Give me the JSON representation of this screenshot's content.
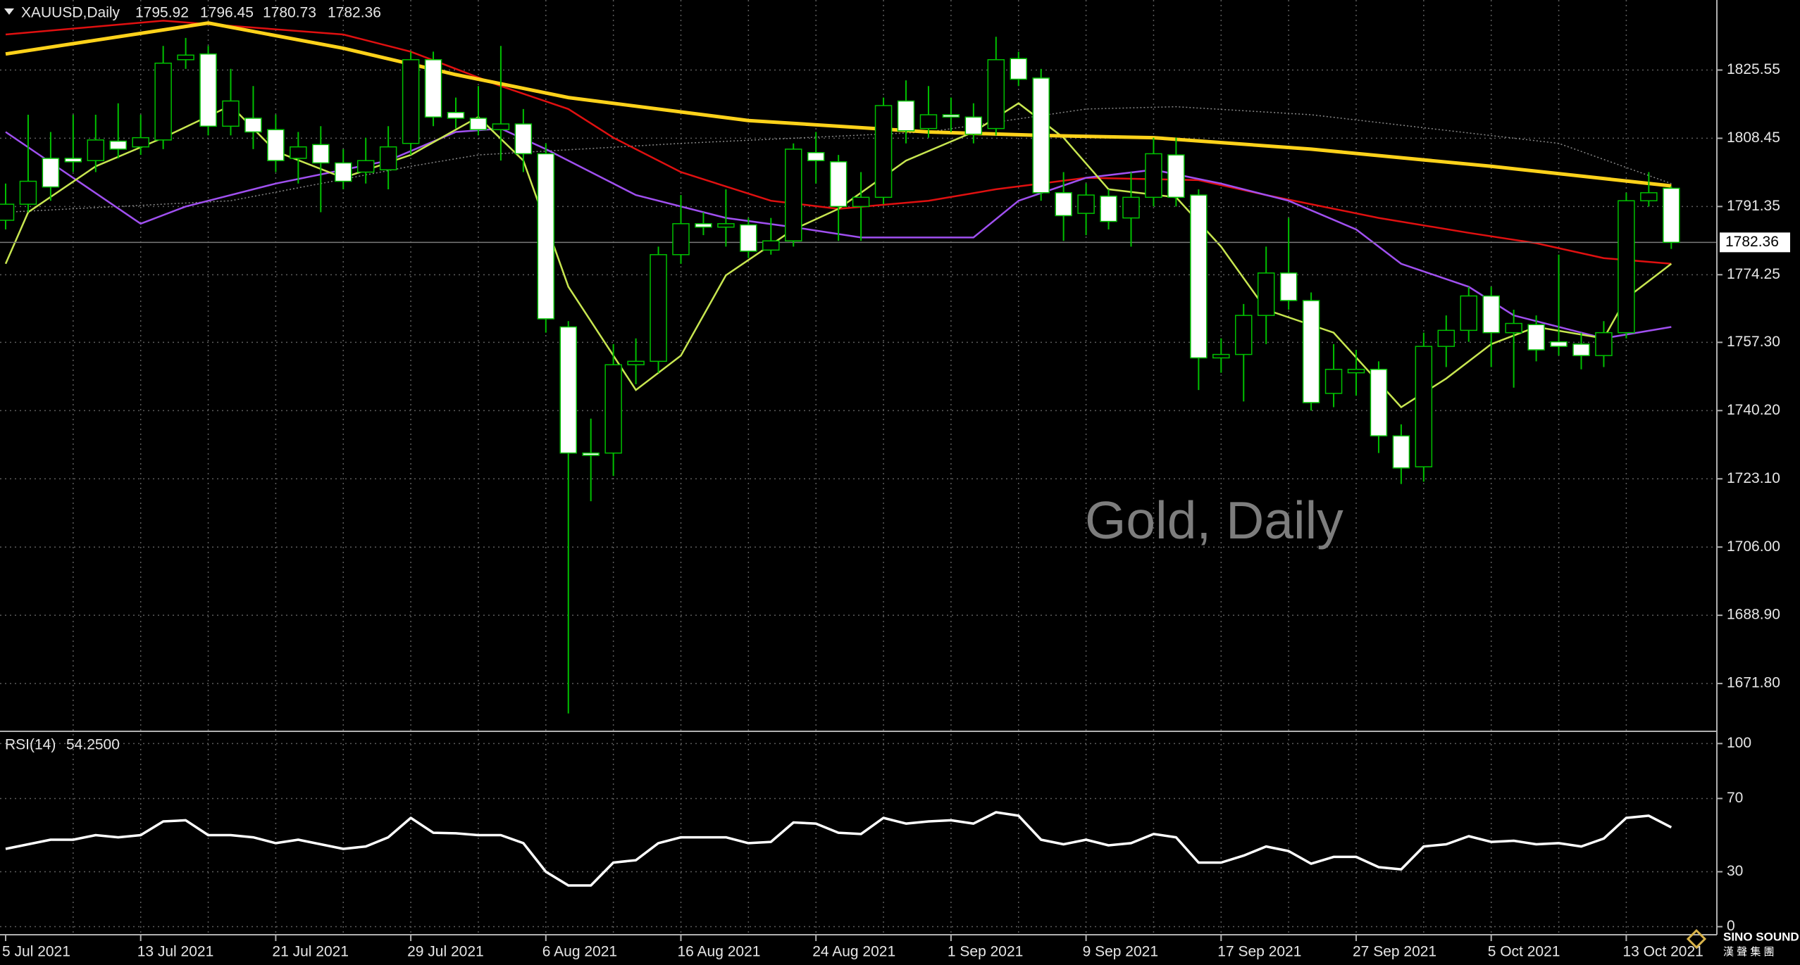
{
  "chart_data": [
    {
      "type": "candlestick",
      "title": "XAUUSD,Daily",
      "watermark": "Gold, Daily",
      "categories": [
        "5 Jul 2021",
        null,
        null,
        null,
        null,
        null,
        "13 Jul 2021",
        null,
        null,
        null,
        null,
        null,
        "21 Jul 2021",
        null,
        null,
        null,
        null,
        null,
        "29 Jul 2021",
        null,
        null,
        null,
        null,
        null,
        "6 Aug 2021",
        null,
        null,
        null,
        null,
        null,
        "16 Aug 2021",
        null,
        null,
        null,
        null,
        null,
        "24 Aug 2021",
        null,
        null,
        null,
        null,
        null,
        "1 Sep 2021",
        null,
        null,
        null,
        null,
        null,
        "9 Sep 2021",
        null,
        null,
        null,
        null,
        null,
        "17 Sep 2021",
        null,
        null,
        null,
        null,
        null,
        "27 Sep 2021",
        null,
        null,
        null,
        null,
        null,
        "5 Oct 2021",
        null,
        null,
        null,
        null,
        null,
        "13 Oct 2021",
        null,
        null
      ],
      "open": [
        1787.9,
        1791.92,
        1803.42,
        1803.42,
        1802.85,
        1807.73,
        1806.29,
        1808.02,
        1828.14,
        1829.57,
        1811.47,
        1813.48,
        1810.61,
        1803.42,
        1806.87,
        1802.27,
        1799.97,
        1800.55,
        1807.16,
        1828.14,
        1814.92,
        1813.48,
        1810.61,
        1812.04,
        1804.57,
        1761.17,
        1729.56,
        1729.56,
        1751.69,
        1752.55,
        1779.28,
        1787.04,
        1786.18,
        1786.75,
        1780.43,
        1782.73,
        1804.86,
        1802.56,
        1791.35,
        1793.65,
        1817.79,
        1810.89,
        1814.34,
        1813.77,
        1810.89,
        1828.42,
        1823.54,
        1794.8,
        1789.63,
        1793.94,
        1788.48,
        1793.65,
        1804.28,
        1794.22,
        1753.41,
        1754.27,
        1764.05,
        1774.68,
        1767.78,
        1744.51,
        1749.68,
        1750.54,
        1733.87,
        1726.11,
        1756.29,
        1760.31,
        1768.93,
        1759.73,
        1761.75,
        1757.44,
        1756.86,
        1753.99,
        1759.73,
        1792.79,
        1795.92
      ],
      "high": [
        1797.1,
        1814.34,
        1810.03,
        1814.34,
        1814.34,
        1817.22,
        1814.34,
        1831.59,
        1833.6,
        1831.59,
        1825.84,
        1821.53,
        1814.34,
        1810.03,
        1811.47,
        1805.72,
        1808.59,
        1811.47,
        1830.15,
        1830.15,
        1818.65,
        1821.53,
        1831.59,
        1815.78,
        1807.16,
        1762.61,
        1738.18,
        1756.86,
        1758.3,
        1781.29,
        1794.22,
        1789.91,
        1795.66,
        1788.48,
        1788.48,
        1807.16,
        1810.03,
        1804.28,
        1799.97,
        1818.65,
        1822.96,
        1821.53,
        1818.65,
        1817.22,
        1833.88,
        1830.15,
        1825.84,
        1799.97,
        1797.1,
        1795.66,
        1799.97,
        1808.59,
        1808.59,
        1795.66,
        1758.3,
        1766.92,
        1781.29,
        1788.48,
        1769.8,
        1756.86,
        1755.42,
        1752.55,
        1736.75,
        1759.73,
        1764.05,
        1771.23,
        1771.23,
        1765.48,
        1764.05,
        1779.28,
        1759.73,
        1762.61,
        1794.8,
        1799.97,
        1796.45
      ],
      "low": [
        1785.6,
        1789.91,
        1792.79,
        1799.97,
        1799.97,
        1803.42,
        1804.28,
        1805.72,
        1825.84,
        1809.17,
        1809.17,
        1805.72,
        1799.97,
        1797.1,
        1789.91,
        1795.66,
        1797.1,
        1795.66,
        1804.28,
        1811.47,
        1810.89,
        1809.17,
        1802.85,
        1799.97,
        1759.73,
        1664.31,
        1717.49,
        1723.81,
        1746.8,
        1749.68,
        1776.98,
        1784.17,
        1781.29,
        1778.42,
        1779.28,
        1781.29,
        1797.1,
        1782.73,
        1782.73,
        1791.92,
        1807.16,
        1808.59,
        1810.03,
        1807.16,
        1809.17,
        1821.53,
        1792.79,
        1782.73,
        1784.17,
        1785.6,
        1781.29,
        1791.35,
        1791.35,
        1745.36,
        1749.68,
        1742.49,
        1756.86,
        1765.48,
        1740.19,
        1741.06,
        1743.93,
        1729.56,
        1721.8,
        1722.37,
        1751.12,
        1757.44,
        1751.12,
        1745.94,
        1752.55,
        1753.99,
        1750.54,
        1751.12,
        1758.3,
        1791.35,
        1780.73
      ],
      "close": [
        1791.92,
        1797.67,
        1796.24,
        1802.56,
        1808.02,
        1805.72,
        1808.59,
        1827.27,
        1829.29,
        1811.47,
        1817.79,
        1810.03,
        1802.85,
        1806.29,
        1802.27,
        1797.67,
        1802.85,
        1806.29,
        1828.14,
        1813.77,
        1813.48,
        1810.61,
        1812.04,
        1804.57,
        1763.19,
        1729.56,
        1728.98,
        1751.69,
        1752.55,
        1779.28,
        1787.04,
        1786.18,
        1787.04,
        1780.14,
        1782.73,
        1805.72,
        1802.85,
        1791.35,
        1793.65,
        1816.64,
        1810.32,
        1814.34,
        1813.77,
        1809.46,
        1828.14,
        1823.25,
        1794.8,
        1789.05,
        1794.22,
        1787.61,
        1793.65,
        1804.57,
        1793.65,
        1753.41,
        1754.27,
        1764.05,
        1774.68,
        1767.78,
        1742.2,
        1750.54,
        1750.54,
        1733.87,
        1725.82,
        1756.29,
        1760.31,
        1768.93,
        1759.73,
        1762.04,
        1755.42,
        1756.29,
        1753.99,
        1759.73,
        1792.79,
        1794.8,
        1782.36
      ],
      "ylim": [
        1660.0,
        1843.1
      ],
      "yticks": [
        1825.55,
        1808.45,
        1791.35,
        1774.25,
        {
          "value": 1757.3,
          "label": "1757.30"
        },
        {
          "value": 1740.2,
          "label": "1740.20"
        },
        {
          "value": 1723.1,
          "label": "1723.10"
        },
        {
          "value": 1706,
          "label": "1706.00"
        },
        {
          "value": 1688.9,
          "label": "1688.90"
        },
        {
          "value": 1671.8,
          "label": "1671.80"
        }
      ],
      "grid": true,
      "colors": {
        "wick": "#00c000",
        "bull_fill": "#000000",
        "bear_fill": "#ffffff",
        "last_price_line": "#7a7a7a"
      },
      "lines": [
        {
          "color": "#888888",
          "style": "dotted",
          "x": [
            0,
            10,
            18,
            21,
            30,
            41,
            48,
            52,
            58,
            69,
            74
          ],
          "values": [
            1789.91,
            1792.79,
            1801.41,
            1804.28,
            1807.16,
            1810.03,
            1815.78,
            1816.35,
            1814.34,
            1807.16,
            1797.1
          ]
        },
        {
          "color": "#e01010",
          "style": "solid",
          "x": [
            0,
            7,
            15,
            18,
            22,
            25,
            27,
            30,
            34,
            37,
            41,
            44,
            48,
            53,
            56,
            61,
            65,
            68,
            71,
            74
          ],
          "values": [
            1834.46,
            1837.91,
            1834.46,
            1830.15,
            1821.53,
            1815.78,
            1808.59,
            1799.97,
            1792.79,
            1790.77,
            1792.79,
            1795.66,
            1798.54,
            1797.96,
            1794.22,
            1788.48,
            1784.74,
            1782.16,
            1778.42,
            1776.99
          ]
        },
        {
          "color": "#a050f0",
          "style": "solid",
          "x": [
            0,
            3,
            6,
            8,
            12,
            17,
            20,
            22,
            24,
            28,
            32,
            35,
            38,
            43,
            45,
            48,
            51,
            54,
            57,
            60,
            62,
            65,
            67,
            71,
            74
          ],
          "values": [
            1810.03,
            1798.54,
            1787.04,
            1791.35,
            1797.1,
            1802.85,
            1810.03,
            1810.89,
            1805.72,
            1794.22,
            1788.48,
            1786.18,
            1783.59,
            1783.59,
            1792.79,
            1798.54,
            1800.55,
            1797.1,
            1792.79,
            1785.6,
            1776.98,
            1771.23,
            1764.05,
            1758.3,
            1761.17
          ]
        },
        {
          "color": "#c8e650",
          "style": "solid",
          "x": [
            0,
            1,
            4,
            7,
            10,
            12,
            15,
            18,
            21,
            23,
            25,
            28,
            30,
            32,
            35,
            37,
            40,
            43,
            45,
            47,
            49,
            52,
            54,
            56,
            59,
            62,
            64,
            66,
            68,
            71,
            72,
            74
          ],
          "values": [
            1776.98,
            1789.91,
            1801.41,
            1808.59,
            1816.64,
            1805.15,
            1798.54,
            1804.28,
            1813.77,
            1802.85,
            1771.23,
            1745.36,
            1753.99,
            1774.11,
            1785.6,
            1790.77,
            1802.85,
            1810.03,
            1817.22,
            1808.59,
            1795.66,
            1793.65,
            1781.29,
            1765.48,
            1759.73,
            1741.06,
            1748.24,
            1756.86,
            1761.17,
            1758.3,
            1768.36,
            1776.98
          ]
        },
        {
          "color": "#ffd21a",
          "style": "thick",
          "x": [
            0,
            9,
            15,
            20,
            25,
            33,
            41,
            46,
            51,
            58,
            66,
            74
          ],
          "values": [
            1829.57,
            1837.33,
            1831.0,
            1824.4,
            1818.65,
            1812.9,
            1810.03,
            1809.17,
            1808.59,
            1805.72,
            1801.41,
            1796.52
          ]
        }
      ],
      "logo": {
        "name": "SINO SOUND",
        "subtitle": "漢 聲 集 團"
      }
    },
    {
      "type": "line",
      "title": "RSI(14)",
      "color": "#ffffff",
      "values": [
        42.5,
        45,
        47.5,
        47.5,
        50,
        48.8,
        50,
        57.5,
        58.1,
        50,
        50,
        48.8,
        45.6,
        47.5,
        45,
        42.5,
        43.8,
        48.8,
        59.4,
        51.3,
        51,
        50,
        50,
        45.6,
        30,
        22.5,
        22.5,
        35,
        36.3,
        45.6,
        48.8,
        48.8,
        48.8,
        45.6,
        46.3,
        56.9,
        56.3,
        51.3,
        50.6,
        59.4,
        56.3,
        57.5,
        58.1,
        56.3,
        62.5,
        60.6,
        47.5,
        45,
        47.5,
        44.4,
        45.6,
        50.6,
        48.8,
        35,
        35,
        38.8,
        43.8,
        41.3,
        34.4,
        38.1,
        38.1,
        32.5,
        31.3,
        43.8,
        45,
        49.4,
        46.3,
        46.9,
        45,
        45.6,
        43.8,
        48.1,
        59.4,
        60.6,
        54.25
      ],
      "value_labels": [
        null,
        null,
        null,
        null,
        null,
        null,
        null,
        null,
        null,
        null,
        null,
        null,
        null,
        null,
        null,
        null,
        null,
        null,
        null,
        null,
        null,
        null,
        null,
        null,
        null,
        null,
        null,
        null,
        null,
        null,
        null,
        null,
        null,
        null,
        null,
        null,
        null,
        null,
        null,
        null,
        null,
        null,
        null,
        null,
        null,
        null,
        null,
        null,
        null,
        null,
        null,
        null,
        null,
        null,
        null,
        null,
        null,
        null,
        null,
        null,
        null,
        null,
        null,
        null,
        null,
        null,
        null,
        null,
        null,
        null,
        null,
        null,
        null,
        null,
        "54.2500"
      ],
      "ylim": [
        -4.4,
        106.3
      ],
      "yticks": [
        0,
        30,
        70,
        100
      ],
      "grid": true
    }
  ]
}
